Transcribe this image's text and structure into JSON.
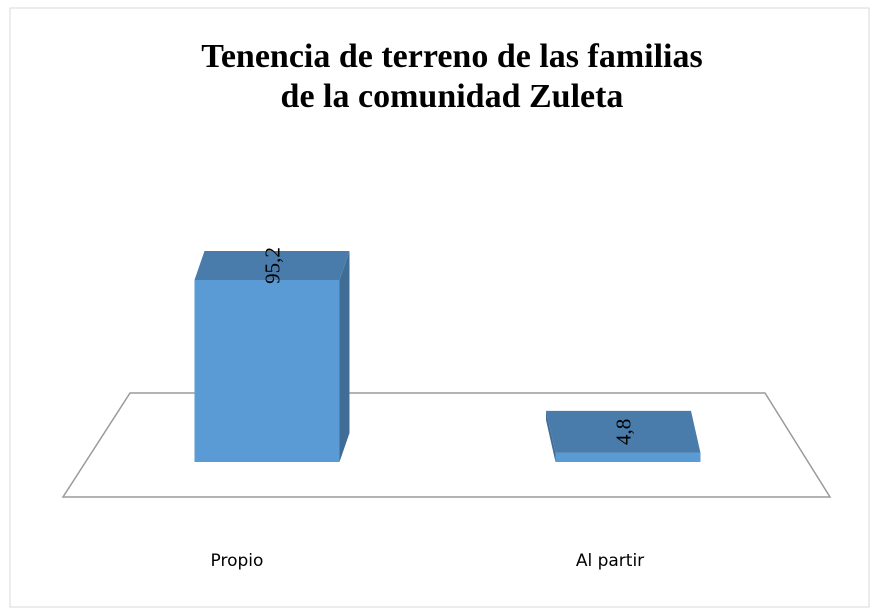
{
  "chart_data": {
    "type": "bar3d",
    "title": "Tenencia de terreno de las familias de la comunidad Zuleta",
    "categories": [
      "Propio",
      "Al partir"
    ],
    "values": [
      95.2,
      4.8
    ],
    "value_labels": [
      "95,2",
      "4,8"
    ],
    "color": "#5b9bd5"
  }
}
